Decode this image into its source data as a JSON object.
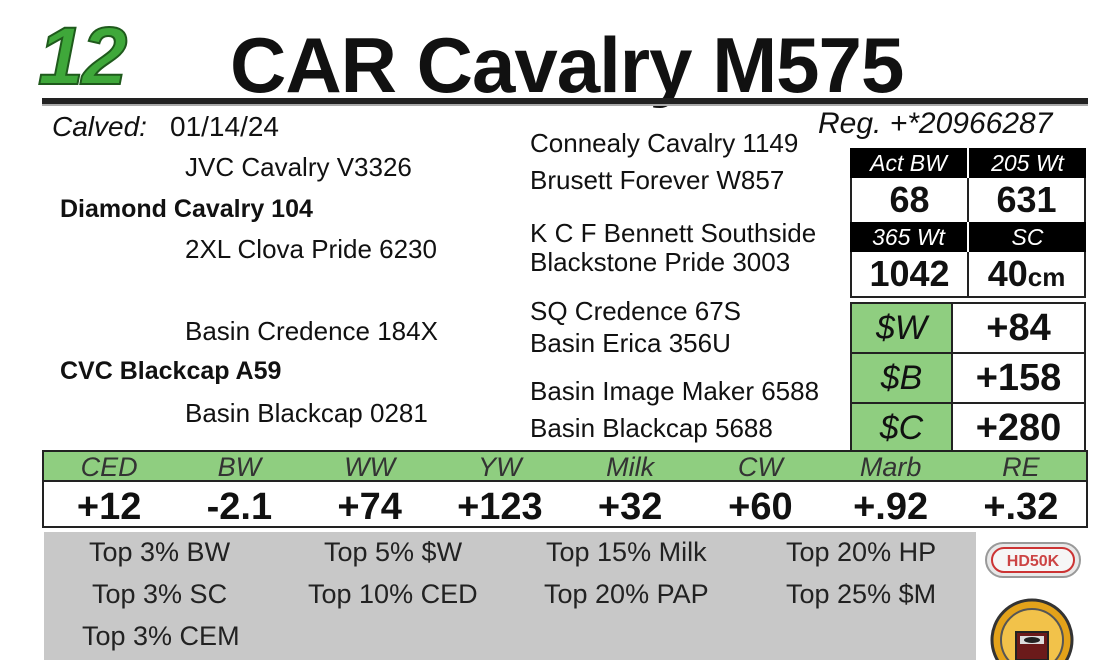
{
  "header": {
    "lot_number": "12",
    "title": "CAR Cavalry M575"
  },
  "animal": {
    "calved_label": "Calved:",
    "calved_date": "01/14/24",
    "registration": "Reg. +*20966287"
  },
  "pedigree": {
    "sire_sire": "JVC Cavalry V3326",
    "sire": "Diamond Cavalry 104",
    "sire_dam": "2XL Clova Pride 6230",
    "dam_sire": "Basin Credence 184X",
    "dam": "CVC Blackcap A59",
    "dam_dam": "Basin Blackcap 0281",
    "ss_sire": "Connealy Cavalry 1149",
    "ss_dam": "Brusett Forever W857",
    "sd_sire": "K C F Bennett Southside",
    "sd_dam": "Blackstone Pride 3003",
    "ds_sire": "SQ Credence 67S",
    "ds_dam": "Basin Erica 356U",
    "dd_sire": "Basin Image Maker 6588",
    "dd_dam": "Basin Blackcap 5688"
  },
  "stats": {
    "act_bw_label": "Act BW",
    "act_bw": "68",
    "w205_label": "205 Wt",
    "w205": "631",
    "w365_label": "365 Wt",
    "w365": "1042",
    "sc_label": "SC",
    "sc": "40",
    "sc_unit": "cm"
  },
  "dollar_values": [
    {
      "label": "$W",
      "value": "+84"
    },
    {
      "label": "$B",
      "value": "+158"
    },
    {
      "label": "$C",
      "value": "+280"
    }
  ],
  "epds": {
    "headers": [
      "CED",
      "BW",
      "WW",
      "YW",
      "Milk",
      "CW",
      "Marb",
      "RE"
    ],
    "values": [
      "+12",
      "-2.1",
      "+74",
      "+123",
      "+32",
      "+60",
      "+.92",
      "+.32"
    ]
  },
  "rankings": [
    "Top 3% BW",
    "Top 5% $W",
    "Top 15% Milk",
    "Top 20% HP",
    "Top 3% SC",
    "Top 10% CED",
    "Top 20% PAP",
    "Top 25% $M",
    "Top 3% CEM"
  ],
  "logos": {
    "genomic_logo_text": "HD50K"
  },
  "colors": {
    "lot_green": "#3fa83a",
    "header_green": "#8fce80",
    "rank_gray": "#c8c8c8"
  }
}
